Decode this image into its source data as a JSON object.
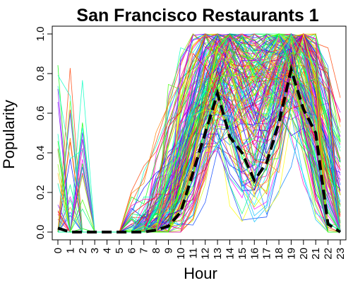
{
  "chart_data": {
    "type": "line",
    "title": "San Francisco Restaurants 1",
    "xlabel": "Hour",
    "ylabel": "Popularity",
    "x": [
      0,
      1,
      2,
      3,
      4,
      5,
      6,
      7,
      8,
      9,
      10,
      11,
      12,
      13,
      14,
      15,
      16,
      17,
      18,
      19,
      20,
      21,
      22,
      23
    ],
    "xlim": [
      0,
      23
    ],
    "ylim": [
      0,
      1.0
    ],
    "yticks": [
      "0.0",
      "0.2",
      "0.4",
      "0.6",
      "0.8",
      "1.0"
    ],
    "xticks": [
      "0",
      "1",
      "2",
      "3",
      "4",
      "5",
      "6",
      "7",
      "8",
      "9",
      "10",
      "11",
      "12",
      "13",
      "14",
      "15",
      "16",
      "17",
      "18",
      "19",
      "20",
      "21",
      "22",
      "23"
    ],
    "grid": false,
    "legend": "none",
    "mean_series": {
      "style": "black-dashed",
      "color": "#000000",
      "values": [
        0.02,
        0.0,
        0.0,
        0.0,
        0.0,
        0.0,
        0.0,
        0.0,
        0.01,
        0.03,
        0.1,
        0.3,
        0.5,
        0.7,
        0.48,
        0.4,
        0.26,
        0.35,
        0.55,
        0.82,
        0.62,
        0.5,
        0.04,
        0.0
      ]
    },
    "background_series_colors": [
      "#ff0000",
      "#ff4000",
      "#ff8000",
      "#ffbf00",
      "#ffff00",
      "#bfff00",
      "#80ff00",
      "#40ff00",
      "#00ff00",
      "#00ff40",
      "#00ff80",
      "#00ffbf",
      "#00ffff",
      "#00bfff",
      "#0080ff",
      "#0040ff",
      "#0000ff",
      "#4000ff",
      "#8000ff",
      "#bf00ff",
      "#ff00ff",
      "#ff00bf",
      "#ff0080",
      "#ff0040"
    ]
  }
}
